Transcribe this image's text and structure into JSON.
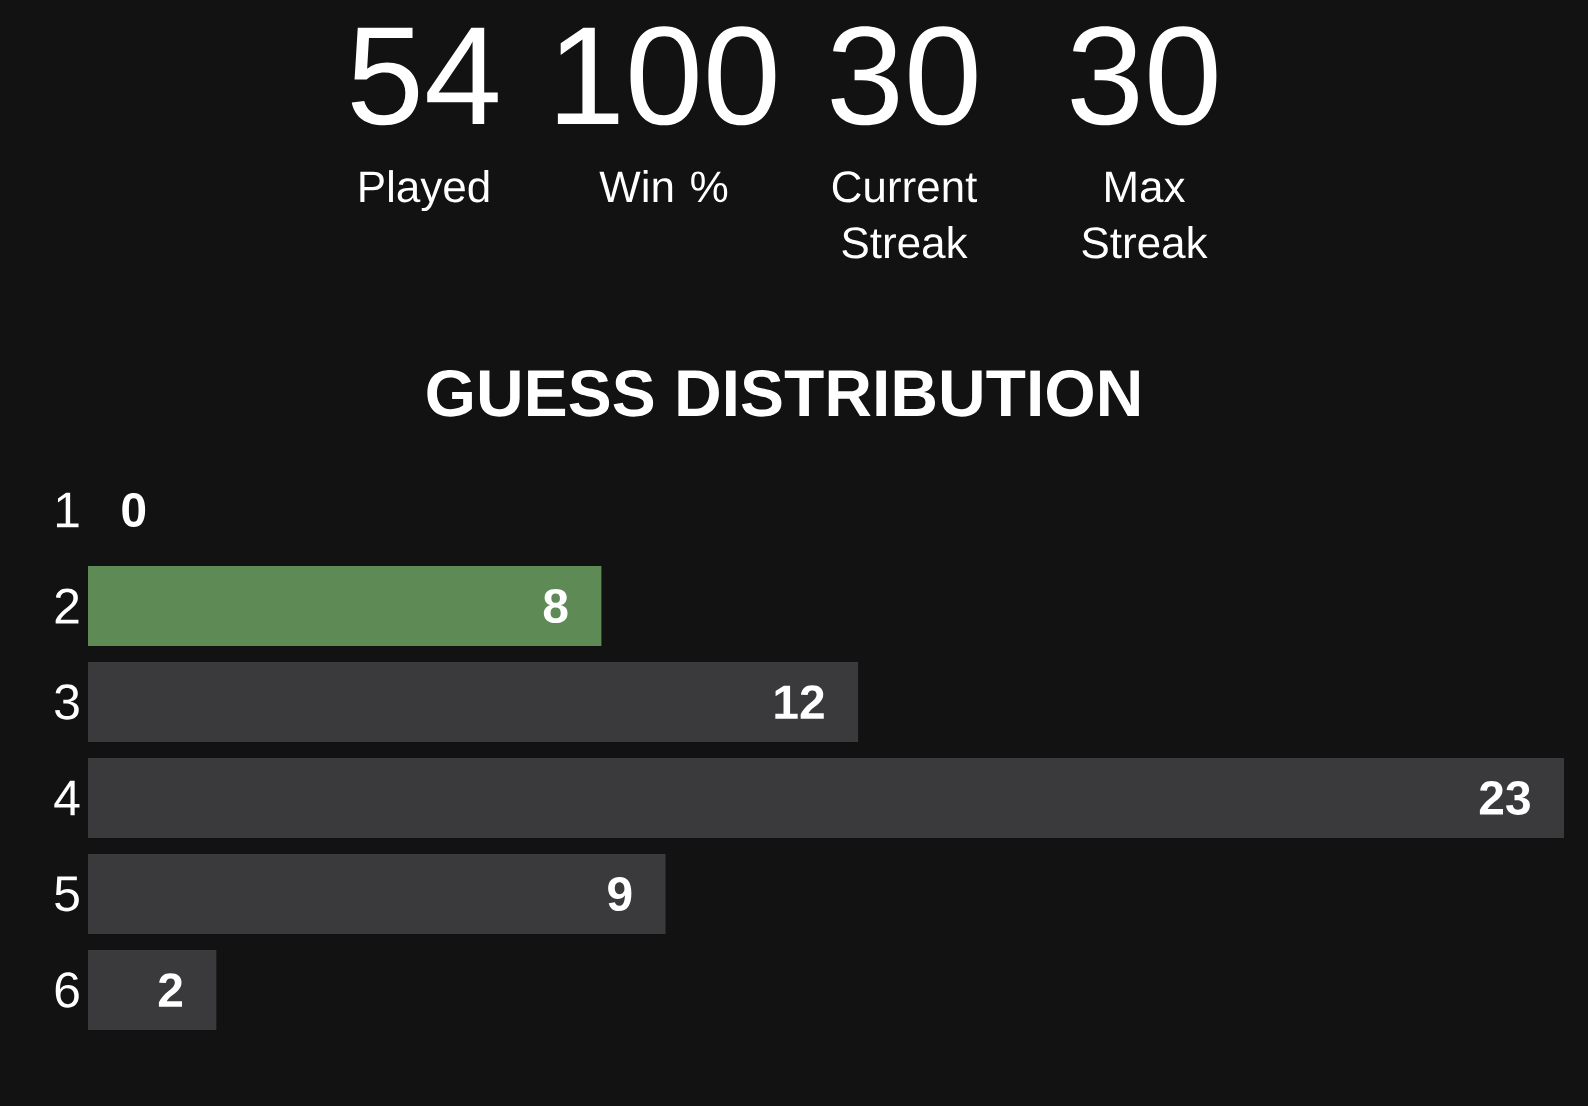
{
  "chart_data": [
    {
      "type": "other",
      "categories": [
        "Played",
        "Win %",
        "Current Streak",
        "Max Streak"
      ],
      "values": [
        54,
        100,
        30,
        30
      ],
      "data_labels": true
    },
    {
      "type": "bar",
      "orientation": "horizontal",
      "title": "GUESS DISTRIBUTION",
      "categories": [
        "1",
        "2",
        "3",
        "4",
        "5",
        "6"
      ],
      "values": [
        0,
        8,
        12,
        23,
        9,
        2
      ],
      "colors": [
        "#3a3a3c",
        "#5e8b55",
        "#3a3a3c",
        "#3a3a3c",
        "#3a3a3c",
        "#3a3a3c"
      ],
      "data_labels": true
    }
  ]
}
